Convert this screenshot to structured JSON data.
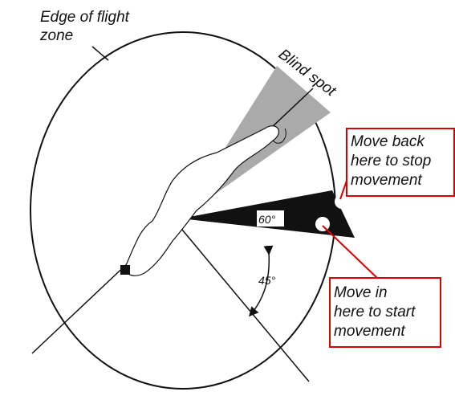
{
  "labels": {
    "edge": {
      "lines": [
        "Edge of flight",
        "zone"
      ]
    },
    "blind_spot": "Blind spot",
    "move_back": {
      "lines": [
        "Move back",
        "here to stop",
        "movement"
      ]
    },
    "move_in": {
      "lines": [
        "Move in",
        "here to start",
        "movement"
      ]
    },
    "angle_60": "60°",
    "angle_45": "45°"
  }
}
